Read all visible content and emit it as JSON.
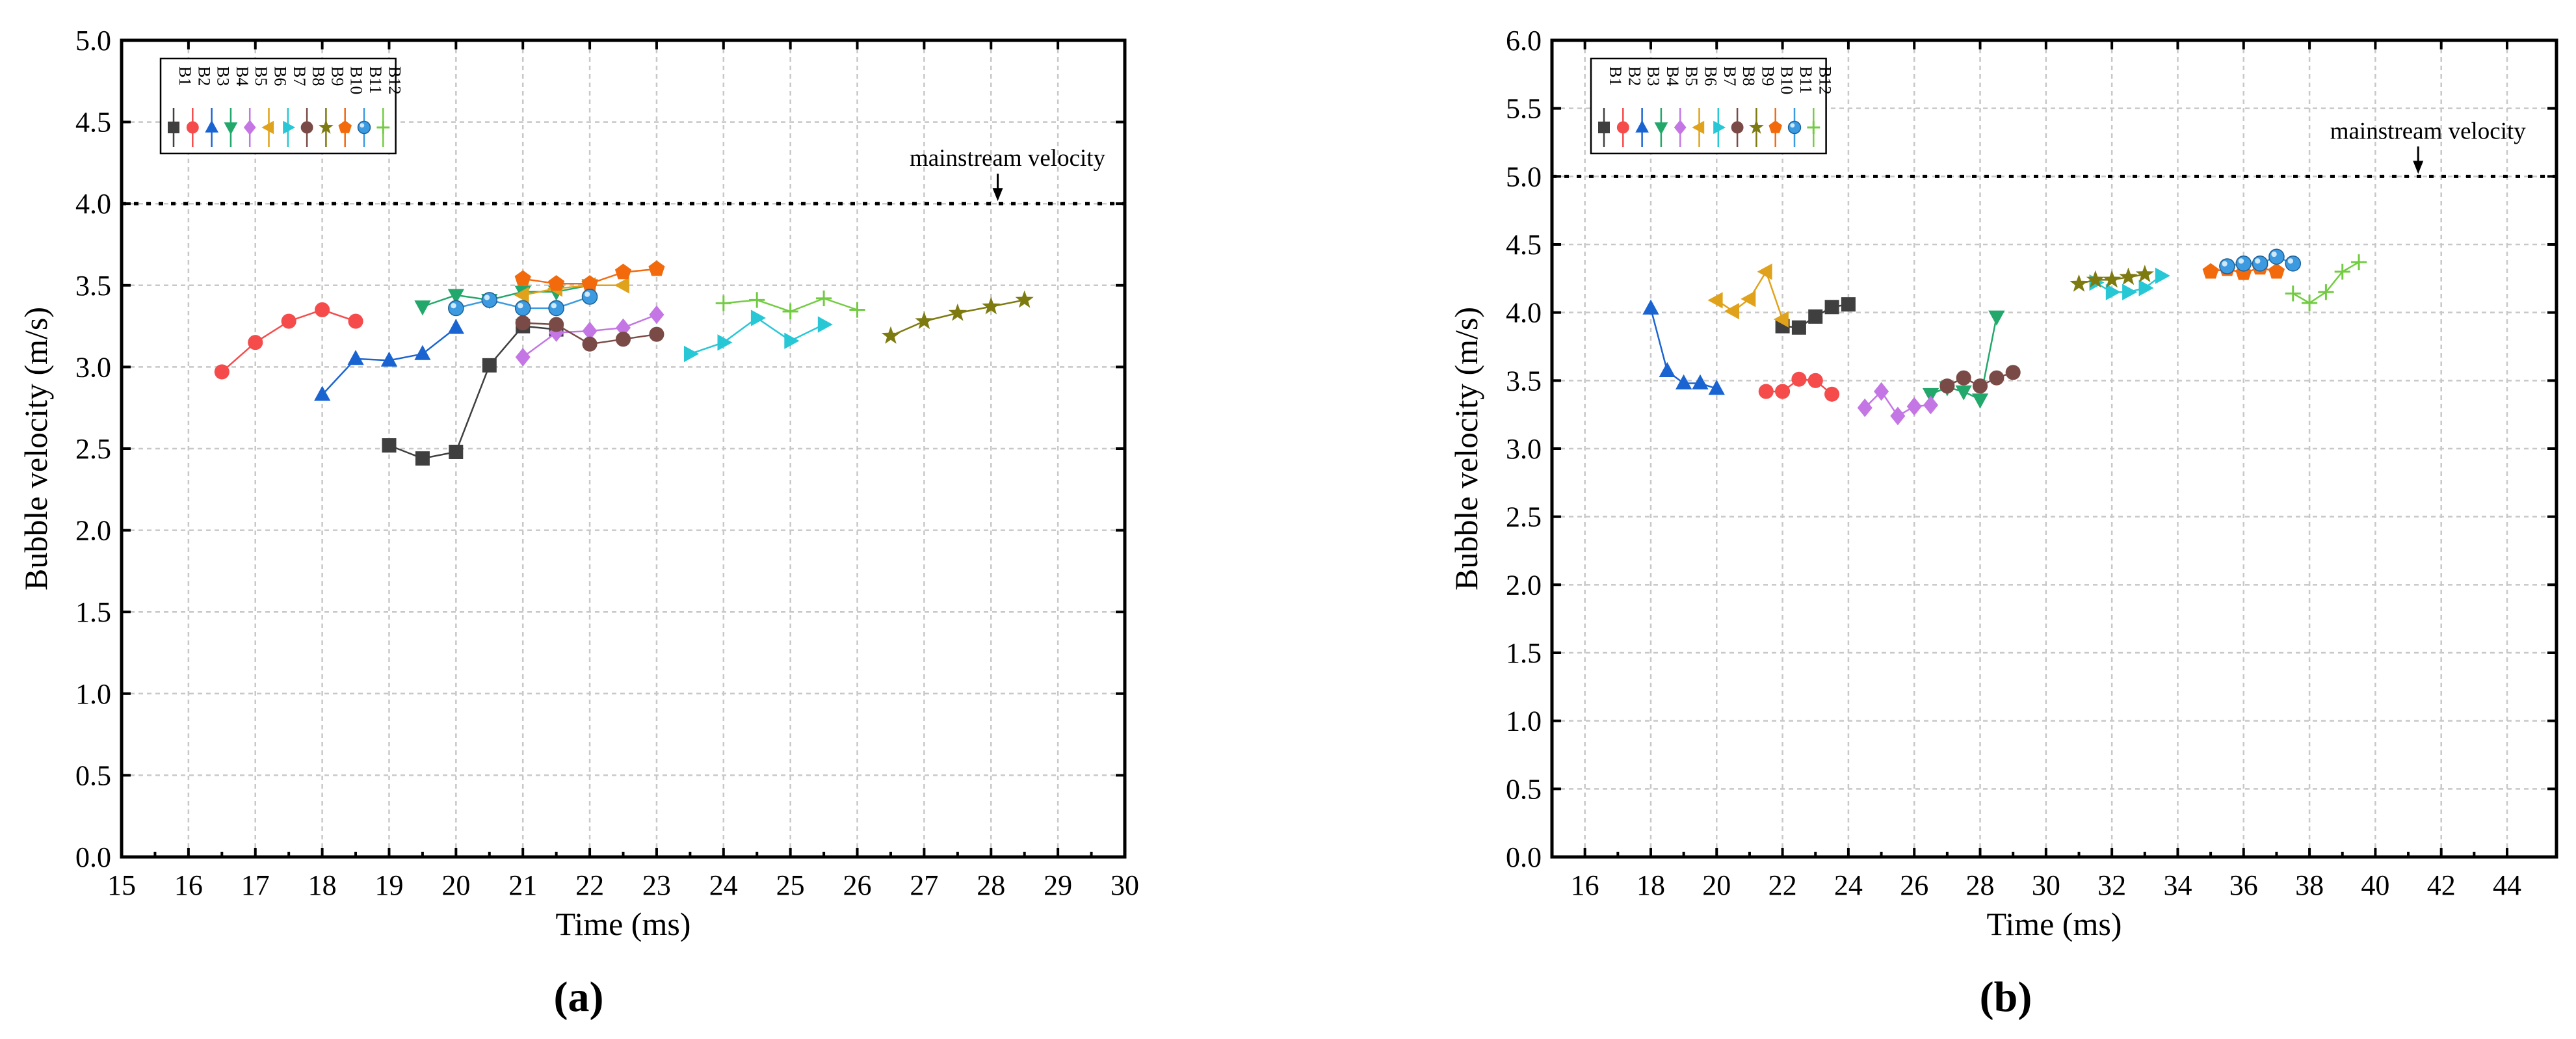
{
  "figure": {
    "panel_labels": [
      "(a)",
      "(b)"
    ]
  },
  "chart_data": [
    {
      "type": "line",
      "panel": "(a)",
      "title": "",
      "xlabel": "Time (ms)",
      "ylabel": "Bubble velocity (m/s)",
      "xlim": [
        15,
        30
      ],
      "ylim": [
        0,
        5
      ],
      "xticks": [
        15,
        16,
        17,
        18,
        19,
        20,
        21,
        22,
        23,
        24,
        25,
        26,
        27,
        28,
        29,
        30
      ],
      "yticks": [
        0,
        0.5,
        1,
        1.5,
        2,
        2.5,
        3,
        3.5,
        4,
        4.5,
        5
      ],
      "xtick_labels": [
        "15",
        "16",
        "17",
        "18",
        "19",
        "20",
        "21",
        "22",
        "23",
        "24",
        "25",
        "26",
        "27",
        "28",
        "29",
        "30"
      ],
      "ytick_labels": [
        "0.0",
        "0.5",
        "1.0",
        "1.5",
        "2.0",
        "2.5",
        "3.0",
        "3.5",
        "4.0",
        "4.5",
        "5.0"
      ],
      "grid": true,
      "legend_position": "top-left",
      "reference_line": {
        "label": "mainstream velocity",
        "y": 4.0,
        "arrow_x": 28.1
      },
      "series": [
        {
          "name": "B1",
          "color": "#3f3f3f",
          "marker": "square",
          "x": [
            19,
            19.5,
            20,
            20.5,
            21,
            21.5
          ],
          "y": [
            2.52,
            2.44,
            2.48,
            3.01,
            3.25,
            3.23
          ]
        },
        {
          "name": "B2",
          "color": "#f54b4b",
          "marker": "circle",
          "x": [
            16.5,
            17,
            17.5,
            18,
            18.5
          ],
          "y": [
            2.97,
            3.15,
            3.28,
            3.35,
            3.28
          ]
        },
        {
          "name": "B3",
          "color": "#1a64d2",
          "marker": "triangle-up",
          "x": [
            18,
            18.5,
            19,
            19.5,
            20
          ],
          "y": [
            2.83,
            3.05,
            3.04,
            3.08,
            3.24
          ]
        },
        {
          "name": "B4",
          "color": "#22a86a",
          "marker": "triangle-down",
          "x": [
            19.5,
            20,
            20.5,
            21,
            21.5,
            22
          ],
          "y": [
            3.37,
            3.44,
            3.41,
            3.46,
            3.46,
            3.5
          ]
        },
        {
          "name": "B5",
          "color": "#c476e4",
          "marker": "diamond",
          "x": [
            21,
            21.5,
            22,
            22.5,
            23
          ],
          "y": [
            3.06,
            3.21,
            3.22,
            3.24,
            3.32
          ]
        },
        {
          "name": "B6",
          "color": "#e0a21a",
          "marker": "triangle-left",
          "x": [
            21,
            21.5,
            22,
            22.5
          ],
          "y": [
            3.44,
            3.48,
            3.5,
            3.5
          ]
        },
        {
          "name": "B7",
          "color": "#27c7d6",
          "marker": "triangle-right",
          "x": [
            23.5,
            24,
            24.5,
            25,
            25.5
          ],
          "y": [
            3.08,
            3.15,
            3.3,
            3.16,
            3.26
          ]
        },
        {
          "name": "B8",
          "color": "#7a4b46",
          "marker": "circle",
          "x": [
            21,
            21.5,
            22,
            22.5,
            23
          ],
          "y": [
            3.27,
            3.26,
            3.14,
            3.17,
            3.2
          ]
        },
        {
          "name": "B9",
          "color": "#7d7a10",
          "marker": "star",
          "x": [
            26.5,
            27,
            27.5,
            28,
            28.5
          ],
          "y": [
            3.19,
            3.28,
            3.33,
            3.37,
            3.41
          ]
        },
        {
          "name": "B10",
          "color": "#f26a0c",
          "marker": "pentagon",
          "x": [
            21,
            21.5,
            22,
            22.5,
            23
          ],
          "y": [
            3.54,
            3.51,
            3.51,
            3.58,
            3.6
          ]
        },
        {
          "name": "B11",
          "color": "#3c9ae0",
          "marker": "sphere",
          "x": [
            20,
            20.5,
            21,
            21.5,
            22
          ],
          "y": [
            3.36,
            3.41,
            3.36,
            3.36,
            3.43
          ]
        },
        {
          "name": "B12",
          "color": "#72cc42",
          "marker": "plus",
          "x": [
            24,
            24.5,
            25,
            25.5,
            26
          ],
          "y": [
            3.39,
            3.41,
            3.34,
            3.42,
            3.35
          ]
        }
      ]
    },
    {
      "type": "line",
      "panel": "(b)",
      "title": "",
      "xlabel": "Time (ms)",
      "ylabel": "Bubble velocity (m/s)",
      "xlim": [
        15,
        45.5
      ],
      "ylim": [
        0,
        6
      ],
      "xticks": [
        16,
        18,
        20,
        22,
        24,
        26,
        28,
        30,
        32,
        34,
        36,
        38,
        40,
        42,
        44
      ],
      "yticks": [
        0,
        0.5,
        1,
        1.5,
        2,
        2.5,
        3,
        3.5,
        4,
        4.5,
        5,
        5.5,
        6
      ],
      "xtick_labels": [
        "16",
        "18",
        "20",
        "22",
        "24",
        "26",
        "28",
        "30",
        "32",
        "34",
        "36",
        "38",
        "40",
        "42",
        "44"
      ],
      "ytick_labels": [
        "0.0",
        "0.5",
        "1.0",
        "1.5",
        "2.0",
        "2.5",
        "3.0",
        "3.5",
        "4.0",
        "4.5",
        "5.0",
        "5.5",
        "6.0"
      ],
      "grid": true,
      "legend_position": "top-left",
      "reference_line": {
        "label": "mainstream velocity",
        "y": 5.0,
        "arrow_x": 41.3
      },
      "series": [
        {
          "name": "B1",
          "color": "#3f3f3f",
          "marker": "square",
          "x": [
            22,
            22.5,
            23,
            23.5,
            24
          ],
          "y": [
            3.9,
            3.89,
            3.97,
            4.04,
            4.06
          ]
        },
        {
          "name": "B2",
          "color": "#f54b4b",
          "marker": "circle",
          "x": [
            21.5,
            22,
            22.5,
            23,
            23.5
          ],
          "y": [
            3.42,
            3.42,
            3.51,
            3.5,
            3.4
          ]
        },
        {
          "name": "B3",
          "color": "#1a64d2",
          "marker": "triangle-up",
          "x": [
            18,
            18.5,
            19,
            19.5,
            20
          ],
          "y": [
            4.03,
            3.57,
            3.48,
            3.48,
            3.44
          ]
        },
        {
          "name": "B4",
          "color": "#22a86a",
          "marker": "triangle-down",
          "x": [
            26.5,
            27,
            27.5,
            28,
            28.5
          ],
          "y": [
            3.4,
            3.45,
            3.42,
            3.36,
            3.97
          ]
        },
        {
          "name": "B5",
          "color": "#c476e4",
          "marker": "diamond",
          "x": [
            24.5,
            25,
            25.5,
            26,
            26.5
          ],
          "y": [
            3.3,
            3.42,
            3.24,
            3.31,
            3.32
          ]
        },
        {
          "name": "B6",
          "color": "#e0a21a",
          "marker": "triangle-left",
          "x": [
            20,
            20.5,
            21,
            21.5,
            22
          ],
          "y": [
            4.09,
            4.01,
            4.1,
            4.3,
            3.95
          ]
        },
        {
          "name": "B7",
          "color": "#27c7d6",
          "marker": "triangle-right",
          "x": [
            31.5,
            32,
            32.5,
            33,
            33.5
          ],
          "y": [
            4.22,
            4.15,
            4.15,
            4.18,
            4.27
          ]
        },
        {
          "name": "B8",
          "color": "#7a4b46",
          "marker": "circle",
          "x": [
            27,
            27.5,
            28,
            28.5,
            29
          ],
          "y": [
            3.46,
            3.52,
            3.46,
            3.52,
            3.56
          ]
        },
        {
          "name": "B9",
          "color": "#7d7a10",
          "marker": "star",
          "x": [
            31,
            31.5,
            32,
            32.5,
            33
          ],
          "y": [
            4.21,
            4.24,
            4.24,
            4.26,
            4.28
          ]
        },
        {
          "name": "B10",
          "color": "#f26a0c",
          "marker": "pentagon",
          "x": [
            35,
            35.5,
            36,
            36.5,
            37
          ],
          "y": [
            4.3,
            4.32,
            4.29,
            4.33,
            4.3
          ]
        },
        {
          "name": "B11",
          "color": "#3c9ae0",
          "marker": "sphere",
          "x": [
            35.5,
            36,
            36.5,
            37,
            37.5
          ],
          "y": [
            4.34,
            4.36,
            4.36,
            4.41,
            4.36
          ]
        },
        {
          "name": "B12",
          "color": "#72cc42",
          "marker": "plus",
          "x": [
            37.5,
            38,
            38.5,
            39,
            39.5
          ],
          "y": [
            4.14,
            4.07,
            4.15,
            4.3,
            4.37
          ]
        }
      ]
    }
  ]
}
